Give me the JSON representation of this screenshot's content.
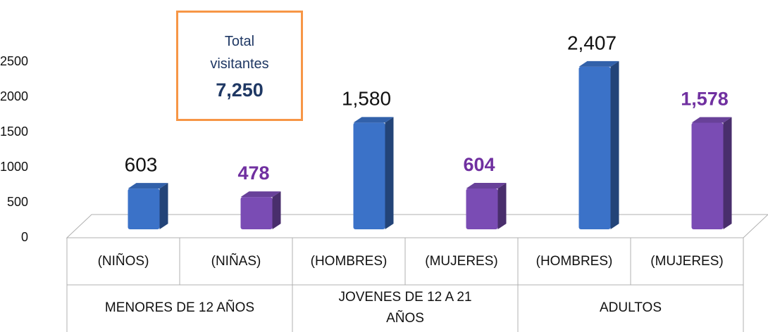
{
  "chart_data": {
    "type": "bar",
    "categories": [
      "(NIÑOS)",
      "(NIÑAS)",
      "(HOMBRES)",
      "(MUJERES)",
      "(HOMBRES)",
      "(MUJERES)"
    ],
    "groups": [
      {
        "name": "MENORES DE 12 AÑOS",
        "span": 2
      },
      {
        "name": "JOVENES DE 12 A 21 AÑOS",
        "span": 2
      },
      {
        "name": "ADULTOS",
        "span": 2
      }
    ],
    "values": [
      603,
      478,
      1580,
      604,
      2407,
      1578
    ],
    "value_labels": [
      "603",
      "478",
      "1,580",
      "604",
      "2,407",
      "1,578"
    ],
    "colors": [
      "#3b72c8",
      "#7a4cb4",
      "#3b72c8",
      "#7a4cb4",
      "#3b72c8",
      "#7a4cb4"
    ],
    "ylim": [
      0,
      2500
    ],
    "yticks": [
      0,
      500,
      1000,
      1500,
      2000,
      2500
    ],
    "annotation": {
      "text": "Total visitantes",
      "value": 7250,
      "value_label": "7,250"
    }
  }
}
